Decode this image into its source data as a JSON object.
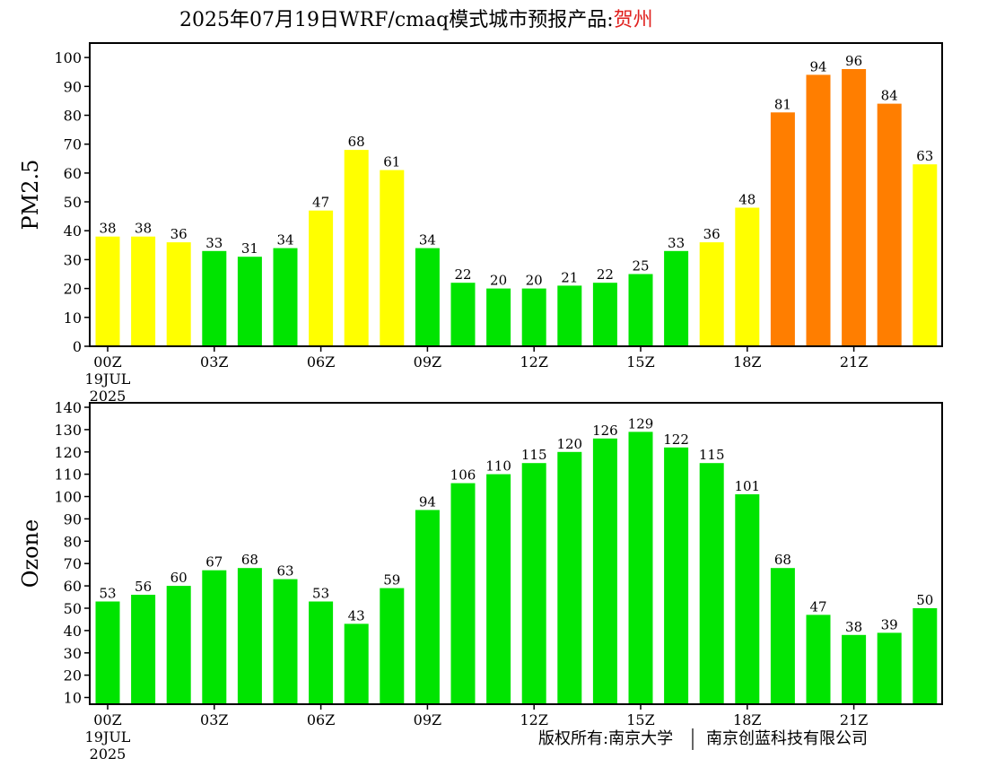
{
  "page": {
    "title_prefix": "2025年07月19日WRF/cmaq模式城市预报产品:",
    "title_city": "贺州",
    "copyright_left": "版权所有:南京大学",
    "copyright_right": "南京创蓝科技有限公司"
  },
  "colors": {
    "green": "#00e400",
    "yellow": "#ffff00",
    "orange": "#ff7e00",
    "title_city": "#e0201e",
    "axis": "#000000"
  },
  "chart_data": [
    {
      "type": "bar",
      "title": "",
      "xlabel": "",
      "ylabel": "PM2.5",
      "ylim": [
        0,
        105
      ],
      "yticks": [
        0,
        10,
        20,
        30,
        40,
        50,
        60,
        70,
        80,
        90,
        100
      ],
      "x_tick_labels": [
        {
          "index": 0,
          "lines": [
            "00Z",
            "19JUL",
            "2025"
          ]
        },
        {
          "index": 3,
          "lines": [
            "03Z"
          ]
        },
        {
          "index": 6,
          "lines": [
            "06Z"
          ]
        },
        {
          "index": 9,
          "lines": [
            "09Z"
          ]
        },
        {
          "index": 12,
          "lines": [
            "12Z"
          ]
        },
        {
          "index": 15,
          "lines": [
            "15Z"
          ]
        },
        {
          "index": 18,
          "lines": [
            "18Z"
          ]
        },
        {
          "index": 21,
          "lines": [
            "21Z"
          ]
        }
      ],
      "values": [
        38,
        38,
        36,
        33,
        31,
        34,
        47,
        68,
        61,
        34,
        22,
        20,
        20,
        21,
        22,
        25,
        33,
        36,
        48,
        81,
        94,
        96,
        84,
        63
      ],
      "bar_colors": [
        "yellow",
        "yellow",
        "yellow",
        "green",
        "green",
        "green",
        "yellow",
        "yellow",
        "yellow",
        "green",
        "green",
        "green",
        "green",
        "green",
        "green",
        "green",
        "green",
        "yellow",
        "yellow",
        "orange",
        "orange",
        "orange",
        "orange",
        "yellow"
      ],
      "grid": false
    },
    {
      "type": "bar",
      "title": "",
      "xlabel": "",
      "ylabel": "Ozone",
      "ylim": [
        7,
        142
      ],
      "yticks": [
        10,
        20,
        30,
        40,
        50,
        60,
        70,
        80,
        90,
        100,
        110,
        120,
        130,
        140
      ],
      "x_tick_labels": [
        {
          "index": 0,
          "lines": [
            "00Z",
            "19JUL",
            "2025"
          ]
        },
        {
          "index": 3,
          "lines": [
            "03Z"
          ]
        },
        {
          "index": 6,
          "lines": [
            "06Z"
          ]
        },
        {
          "index": 9,
          "lines": [
            "09Z"
          ]
        },
        {
          "index": 12,
          "lines": [
            "12Z"
          ]
        },
        {
          "index": 15,
          "lines": [
            "15Z"
          ]
        },
        {
          "index": 18,
          "lines": [
            "18Z"
          ]
        },
        {
          "index": 21,
          "lines": [
            "21Z"
          ]
        }
      ],
      "values": [
        53,
        56,
        60,
        67,
        68,
        63,
        53,
        43,
        59,
        94,
        106,
        110,
        115,
        120,
        126,
        129,
        122,
        115,
        101,
        68,
        47,
        38,
        39,
        50
      ],
      "bar_colors": [
        "green",
        "green",
        "green",
        "green",
        "green",
        "green",
        "green",
        "green",
        "green",
        "green",
        "green",
        "green",
        "green",
        "green",
        "green",
        "green",
        "green",
        "green",
        "green",
        "green",
        "green",
        "green",
        "green",
        "green"
      ],
      "grid": false
    }
  ]
}
